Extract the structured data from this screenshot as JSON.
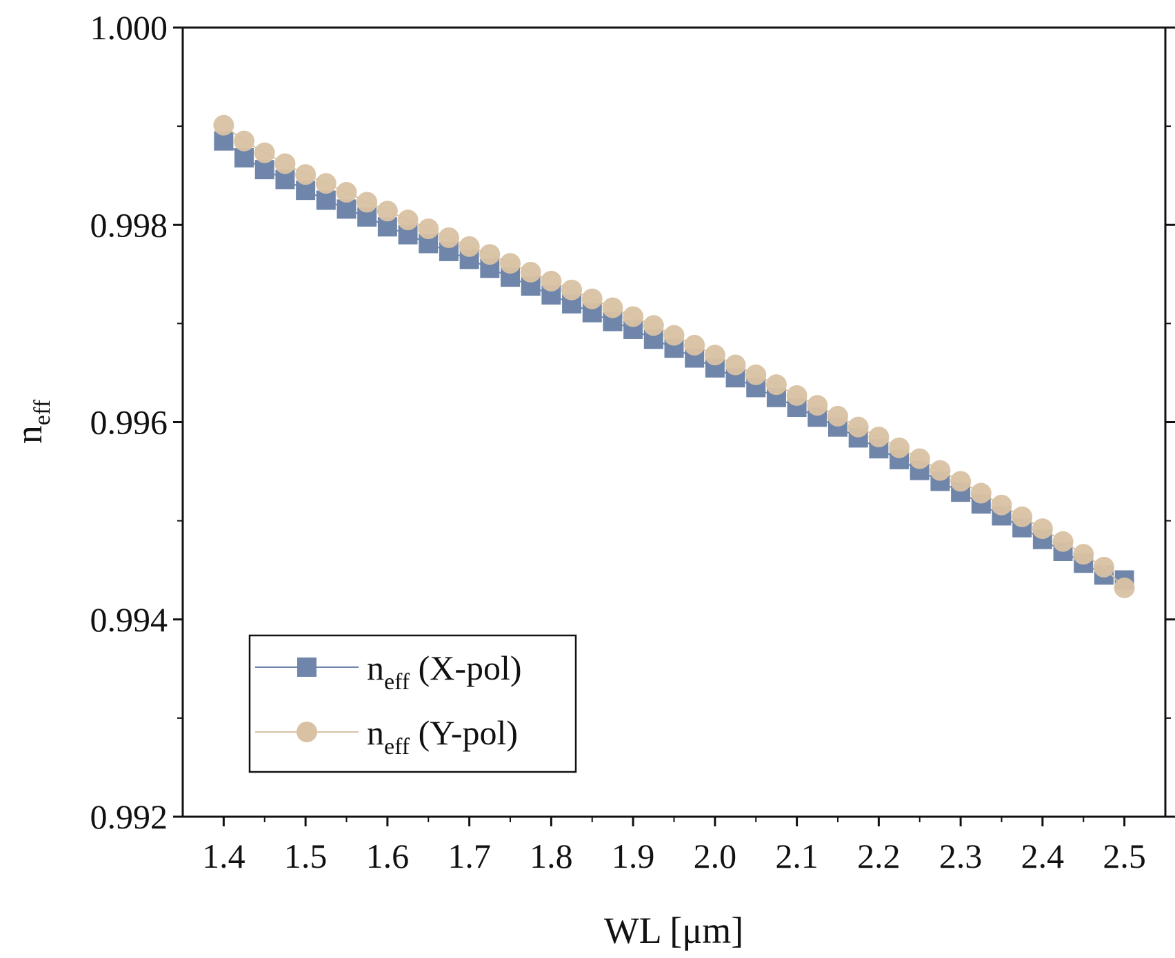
{
  "chart_data": {
    "type": "scatter",
    "title": "",
    "xlabel": "WL [μm]",
    "ylabel_main": "n",
    "ylabel_sub": "eff",
    "xlim": [
      1.35,
      2.55
    ],
    "ylim": [
      0.992,
      1.0
    ],
    "xticks": [
      1.4,
      1.5,
      1.6,
      1.7,
      1.8,
      1.9,
      2.0,
      2.1,
      2.2,
      2.3,
      2.4,
      2.5
    ],
    "xtick_labels": [
      "1.4",
      "1.5",
      "1.6",
      "1.7",
      "1.8",
      "1.9",
      "2.0",
      "2.1",
      "2.2",
      "2.3",
      "2.4",
      "2.5"
    ],
    "yticks": [
      0.992,
      0.994,
      0.996,
      0.998,
      1.0
    ],
    "ytick_labels": [
      "0.992",
      "0.994",
      "0.996",
      "0.998",
      "1.000"
    ],
    "grid": false,
    "legend_position": "bottom-left",
    "x": [
      1.4,
      1.425,
      1.45,
      1.475,
      1.5,
      1.525,
      1.55,
      1.575,
      1.6,
      1.625,
      1.65,
      1.675,
      1.7,
      1.725,
      1.75,
      1.775,
      1.8,
      1.825,
      1.85,
      1.875,
      1.9,
      1.925,
      1.95,
      1.975,
      2.0,
      2.025,
      2.05,
      2.075,
      2.1,
      2.125,
      2.15,
      2.175,
      2.2,
      2.225,
      2.25,
      2.275,
      2.3,
      2.325,
      2.35,
      2.375,
      2.4,
      2.425,
      2.45,
      2.475,
      2.5
    ],
    "series": [
      {
        "name": "X-pol",
        "legend_main": "n",
        "legend_sub": "eff",
        "legend_rest": " (X-pol)",
        "marker": "square",
        "color": "#6f86aa",
        "values": [
          0.99885,
          0.99868,
          0.99856,
          0.99846,
          0.99835,
          0.99825,
          0.99816,
          0.99808,
          0.99798,
          0.9979,
          0.99781,
          0.99773,
          0.99765,
          0.99756,
          0.99747,
          0.99738,
          0.99729,
          0.9972,
          0.99711,
          0.99702,
          0.99694,
          0.99684,
          0.99675,
          0.99665,
          0.99655,
          0.99645,
          0.99635,
          0.99625,
          0.99615,
          0.99605,
          0.99595,
          0.99584,
          0.99573,
          0.99562,
          0.99551,
          0.9954,
          0.99529,
          0.99517,
          0.99505,
          0.99493,
          0.99481,
          0.99469,
          0.99457,
          0.99445,
          0.9944
        ]
      },
      {
        "name": "Y-pol",
        "legend_main": "n",
        "legend_sub": "eff",
        "legend_rest": " (Y-pol)",
        "marker": "circle",
        "color": "#d9c2a3",
        "values": [
          0.99901,
          0.99885,
          0.99873,
          0.99862,
          0.99851,
          0.99842,
          0.99833,
          0.99823,
          0.99814,
          0.99805,
          0.99796,
          0.99787,
          0.99778,
          0.9977,
          0.99761,
          0.99752,
          0.99743,
          0.99734,
          0.99725,
          0.99716,
          0.99707,
          0.99698,
          0.99688,
          0.99678,
          0.99668,
          0.99658,
          0.99648,
          0.99638,
          0.99627,
          0.99617,
          0.99606,
          0.99595,
          0.99585,
          0.99574,
          0.99563,
          0.99551,
          0.9954,
          0.99528,
          0.99516,
          0.99504,
          0.99492,
          0.99479,
          0.99466,
          0.99453,
          0.99432
        ]
      }
    ]
  }
}
